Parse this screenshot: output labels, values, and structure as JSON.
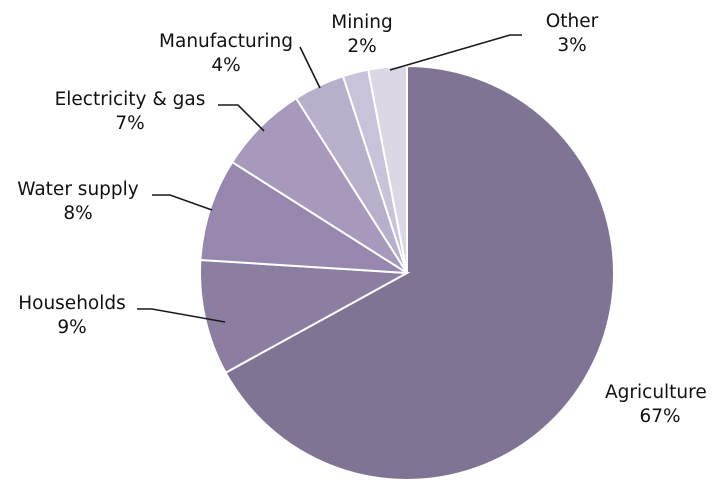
{
  "chart_data": {
    "type": "pie",
    "title": "",
    "start_angle_deg": 0,
    "direction": "clockwise",
    "slices": [
      {
        "label": "Agriculture",
        "value": 67,
        "value_label": "67%",
        "color": "#807495"
      },
      {
        "label": "Households",
        "value": 9,
        "value_label": "9%",
        "color": "#8b7ea1"
      },
      {
        "label": "Water supply",
        "value": 8,
        "value_label": "8%",
        "color": "#9786ad"
      },
      {
        "label": "Electricity & gas",
        "value": 7,
        "value_label": "7%",
        "color": "#a699bc"
      },
      {
        "label": "Manufacturing",
        "value": 4,
        "value_label": "4%",
        "color": "#b8afca"
      },
      {
        "label": "Mining",
        "value": 2,
        "value_label": "2%",
        "color": "#c9c2d8"
      },
      {
        "label": "Other",
        "value": 3,
        "value_label": "3%",
        "color": "#dcd7e5"
      }
    ]
  }
}
